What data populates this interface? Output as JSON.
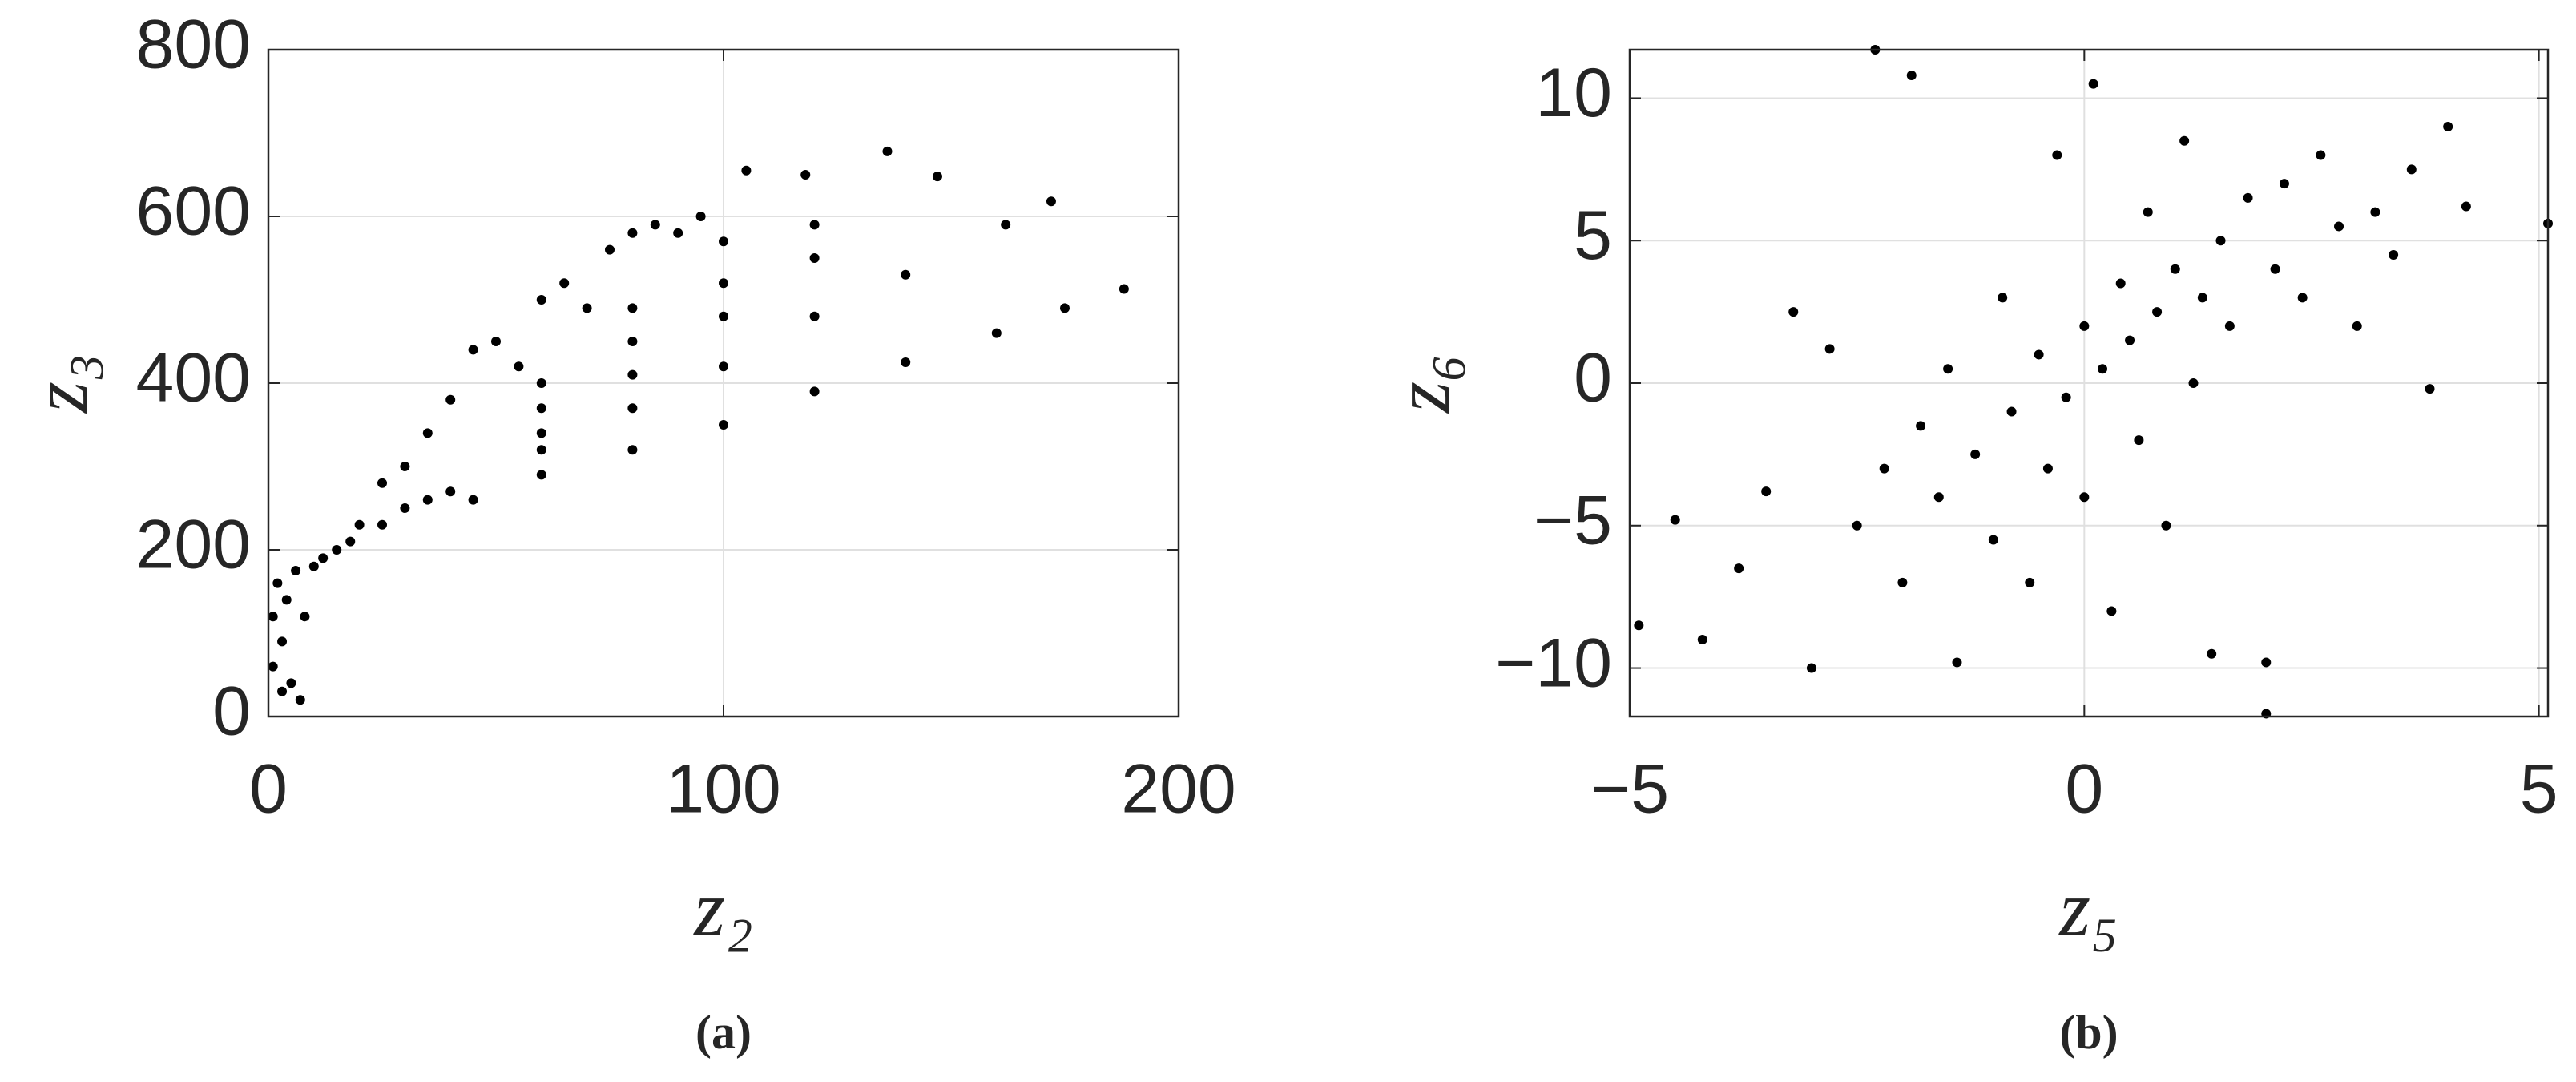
{
  "chart_data": [
    {
      "type": "scatter",
      "caption": "(a)",
      "x_label": "z₂",
      "y_label": "z₃",
      "xlim": [
        0,
        200
      ],
      "ylim": [
        0,
        800
      ],
      "xticks": [
        0,
        100,
        200
      ],
      "yticks": [
        0,
        200,
        400,
        600,
        800
      ],
      "grid": true,
      "color": "#000000",
      "x": [
        1,
        1,
        2,
        3,
        4,
        5,
        6,
        8,
        10,
        12,
        15,
        18,
        20,
        25,
        30,
        35,
        40,
        45,
        30,
        25,
        35,
        40,
        7,
        3,
        60,
        80,
        100,
        120,
        140,
        160,
        175,
        188,
        60,
        80,
        100,
        120,
        140,
        162,
        172,
        60,
        80,
        100,
        120,
        147,
        60,
        80,
        100,
        120,
        136,
        60,
        80,
        100,
        118,
        55,
        70,
        90,
        105,
        50,
        65,
        80,
        95,
        45,
        60,
        75,
        85
      ],
      "y": [
        60,
        120,
        160,
        90,
        140,
        40,
        175,
        120,
        180,
        190,
        200,
        210,
        230,
        230,
        250,
        260,
        270,
        260,
        300,
        280,
        340,
        380,
        20,
        30,
        290,
        320,
        350,
        390,
        425,
        460,
        490,
        513,
        320,
        370,
        420,
        480,
        530,
        590,
        618,
        340,
        410,
        480,
        550,
        648,
        370,
        450,
        520,
        590,
        678,
        400,
        490,
        570,
        650,
        420,
        490,
        580,
        655,
        450,
        520,
        580,
        600,
        440,
        500,
        560,
        590
      ]
    },
    {
      "type": "scatter",
      "caption": "(b)",
      "x_label": "z₅",
      "y_label": "z₆",
      "xlim": [
        -5,
        5.1
      ],
      "ylim": [
        -11.7,
        11.7
      ],
      "xticks": [
        {
          "value": -5,
          "label": "−5"
        },
        0,
        5
      ],
      "yticks": [
        {
          "value": -10,
          "label": "−10"
        },
        {
          "value": -5,
          "label": "−5"
        },
        0,
        5,
        10
      ],
      "grid": true,
      "color": "#000000",
      "x": [
        -4.9,
        -4.5,
        -4.2,
        -3.8,
        -3.5,
        -3.2,
        -3,
        -2.8,
        -2.5,
        -2.3,
        -2.2,
        -2,
        -1.9,
        -1.8,
        -1.6,
        -1.5,
        -1.4,
        -1.2,
        -1,
        -0.9,
        -0.8,
        -0.6,
        -0.5,
        -0.4,
        -0.3,
        -0.2,
        0,
        0,
        0.1,
        0.2,
        0.3,
        0.4,
        0.5,
        0.6,
        0.7,
        0.8,
        0.9,
        1,
        1.1,
        1.2,
        1.3,
        1.4,
        1.5,
        1.6,
        1.8,
        2,
        2,
        2.1,
        2.2,
        2.4,
        2.6,
        2.8,
        3,
        3.2,
        3.4,
        3.6,
        3.8,
        4,
        4.2,
        5.1
      ],
      "y": [
        -8.5,
        -4.8,
        -9,
        -6.5,
        -3.8,
        2.5,
        -10,
        1.2,
        -5,
        11.7,
        -3,
        -7,
        10.8,
        -1.5,
        -4,
        0.5,
        -9.8,
        -2.5,
        -5.5,
        3,
        -1,
        -7,
        1,
        -3,
        8,
        -0.5,
        2,
        -4,
        10.5,
        0.5,
        -8,
        3.5,
        1.5,
        -2,
        6,
        2.5,
        -5,
        4,
        8.5,
        0,
        3,
        -9.5,
        5,
        2,
        6.5,
        -11.6,
        -9.8,
        4,
        7,
        3,
        8,
        5.5,
        2,
        6,
        4.5,
        7.5,
        -0.2,
        9,
        6.2,
        5.6
      ]
    }
  ]
}
